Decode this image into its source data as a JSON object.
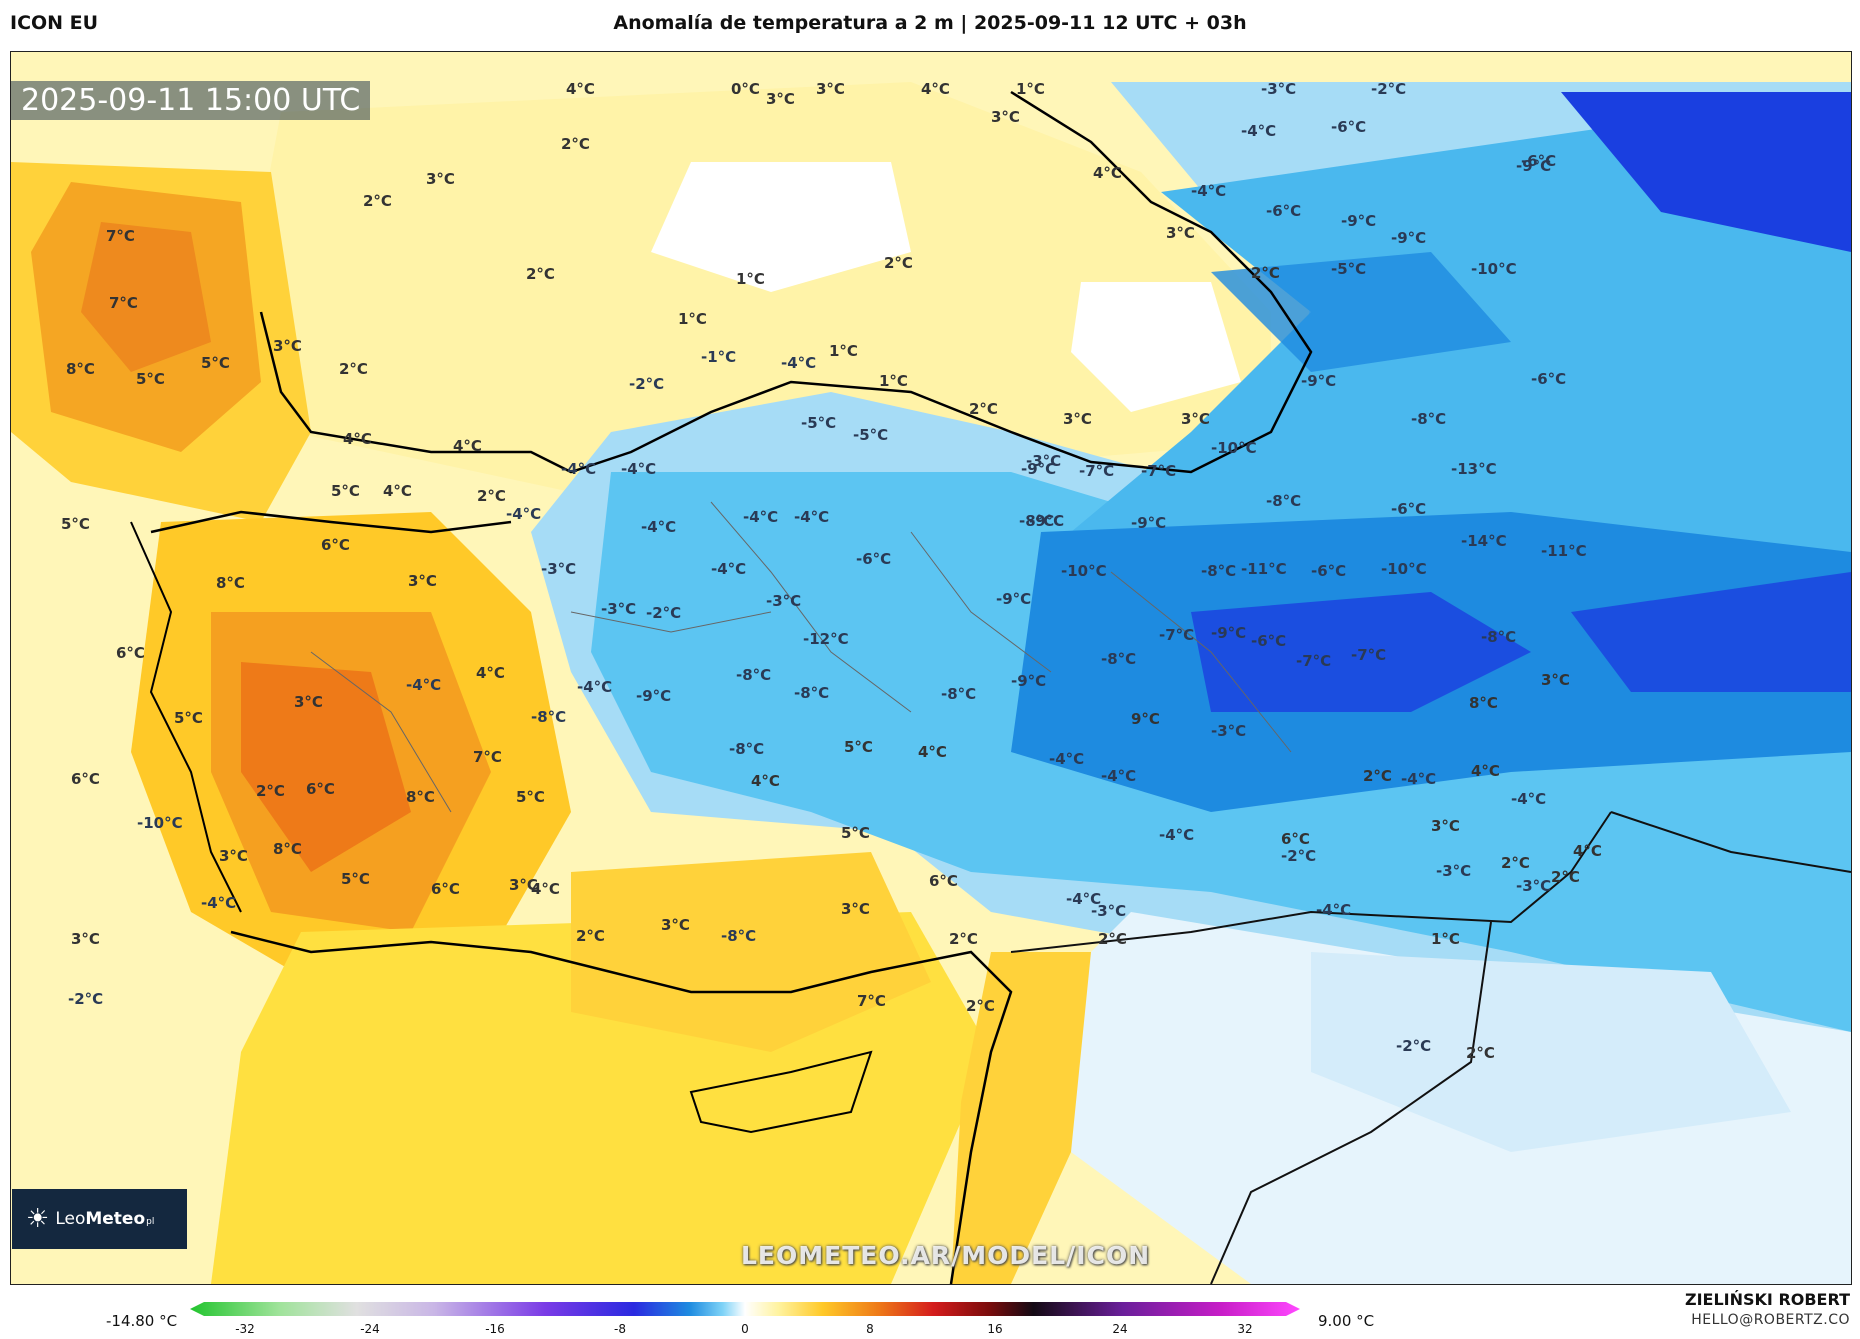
{
  "header": {
    "model": "ICON EU",
    "title": "Anomalía de temperatura a 2 m | 2025-09-11 12 UTC + 03h"
  },
  "map": {
    "timestamp": "2025-09-11 15:00 UTC",
    "watermark": "LEOMETEO.AR/MODEL/ICON",
    "logo": {
      "brand_light": "Leo",
      "brand_bold": "Meteo",
      "brand_suffix": "pl"
    },
    "labels": [
      "4°C",
      "0°C",
      "3°C",
      "3°C",
      "4°C",
      "1°C",
      "3°C",
      "-3°C",
      "-2°C",
      "-4°C",
      "-6°C",
      "-6°C",
      "2°C",
      "3°C",
      "2°C",
      "4°C",
      "-4°C",
      "-6°C",
      "-9°C",
      "-9°C",
      "-9°C",
      "3°C",
      "2°C",
      "-5°C",
      "-10°C",
      "7°C",
      "2°C",
      "1°C",
      "2°C",
      "7°C",
      "1°C",
      "3°C",
      "1°C",
      "-1°C",
      "-4°C",
      "1°C",
      "8°C",
      "5°C",
      "5°C",
      "2°C",
      "-2°C",
      "-9°C",
      "-6°C",
      "2°C",
      "3°C",
      "3°C",
      "-5°C",
      "-5°C",
      "-8°C",
      "4°C",
      "4°C",
      "-4°C",
      "-3°C",
      "-4°C",
      "-9°C",
      "-7°C",
      "-7°C",
      "-10°C",
      "-13°C",
      "5°C",
      "4°C",
      "2°C",
      "-8°C",
      "-8°C",
      "-6°C",
      "5°C",
      "-4°C",
      "-4°C",
      "-4°C",
      "-4°C",
      "-9°C",
      "-9°C",
      "-14°C",
      "-11°C",
      "6°C",
      "-3°C",
      "-6°C",
      "-10°C",
      "-8°C",
      "-11°C",
      "-6°C",
      "-10°C",
      "8°C",
      "3°C",
      "-4°C",
      "-3°C",
      "-9°C",
      "-3°C",
      "-2°C",
      "-12°C",
      "-7°C",
      "-9°C",
      "-8°C",
      "-7°C",
      "-8°C",
      "6°C",
      "-8°C",
      "-8°C",
      "-7°C",
      "3°C",
      "4°C",
      "-4°C",
      "-4°C",
      "-9°C",
      "-8°C",
      "-9°C",
      "9°C",
      "3°C",
      "-8°C",
      "-3°C",
      "-6°C",
      "8°C",
      "5°C",
      "-8°C",
      "7°C",
      "5°C",
      "4°C",
      "-4°C",
      "-4°C",
      "2°C",
      "-4°C",
      "4°C",
      "6°C",
      "-4°C",
      "6°C",
      "4°C",
      "5°C",
      "-4°C",
      "6°C",
      "2°C",
      "5°C",
      "8°C",
      "2°C",
      "-10°C",
      "-3°C",
      "-4°C",
      "8°C",
      "3°C",
      "3°C",
      "4°C",
      "-4°C",
      "3°C",
      "5°C",
      "6°C",
      "3°C",
      "6°C",
      "4°C",
      "2°C",
      "-3°C",
      "-2°C",
      "-3°C",
      "-4°C",
      "3°C",
      "2°C",
      "3°C",
      "-8°C",
      "7°C",
      "-2°C",
      "2°C",
      "2°C",
      "1°C",
      "-2°C",
      "2°C",
      "-2°C",
      "2°C"
    ]
  },
  "colorbar": {
    "min_label": "-14.80 °C",
    "max_label": "9.00 °C",
    "ticks": [
      "-32",
      "-24",
      "-16",
      "-8",
      "0",
      "8",
      "16",
      "24",
      "32"
    ]
  },
  "credit": {
    "name": "ZIELIŃSKI ROBERT",
    "email": "HELLO@ROBERTZ.CO"
  },
  "colors": {
    "warm_light": "#fff6b8",
    "warm_mid": "#ffe040",
    "warm_strong": "#f5b000",
    "warm_hot": "#ee7a18",
    "cold_light": "#d4ecfa",
    "cold_mid": "#5cc5f2",
    "cold_strong": "#1e8be0",
    "cold_deep": "#1a3fe0"
  }
}
